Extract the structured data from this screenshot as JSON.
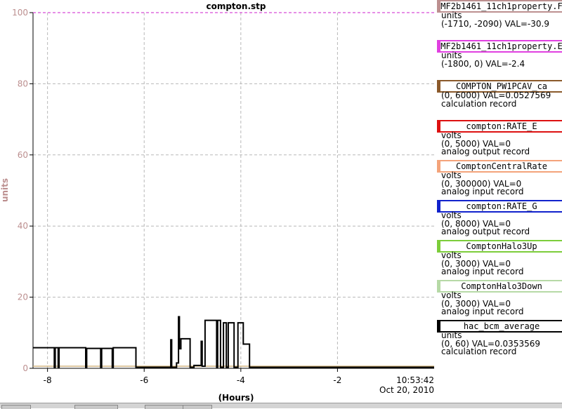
{
  "chart_data": {
    "type": "line",
    "title": "compton.stp",
    "xlabel": "(Hours)",
    "ylabel": "units",
    "xlim": [
      -8.3,
      0
    ],
    "ylim": [
      0,
      100
    ],
    "x_ticks": [
      -8,
      -6,
      -4,
      -2
    ],
    "y_ticks": [
      0,
      20,
      40,
      60,
      80,
      100
    ],
    "grid": true,
    "end_time": "10:53:42",
    "end_date": "Oct 20, 2010",
    "series": [
      {
        "color": "#000000",
        "points": [
          [
            -8.3,
            5.8
          ],
          [
            -7.86,
            5.8
          ],
          [
            -7.86,
            0.3
          ],
          [
            -7.84,
            0.3
          ],
          [
            -7.84,
            5.8
          ],
          [
            -7.78,
            5.8
          ],
          [
            -7.78,
            0.3
          ],
          [
            -7.76,
            0.3
          ],
          [
            -7.76,
            5.8
          ],
          [
            -7.21,
            5.8
          ],
          [
            -7.21,
            0.3
          ],
          [
            -7.19,
            0.3
          ],
          [
            -7.19,
            5.6
          ],
          [
            -6.9,
            5.6
          ],
          [
            -6.9,
            0.3
          ],
          [
            -6.88,
            0.3
          ],
          [
            -6.88,
            5.6
          ],
          [
            -6.66,
            5.6
          ],
          [
            -6.66,
            0.3
          ],
          [
            -6.64,
            0.3
          ],
          [
            -6.64,
            5.8
          ],
          [
            -6.17,
            5.8
          ],
          [
            -6.17,
            0.3
          ],
          [
            -5.45,
            0.3
          ],
          [
            -5.45,
            8
          ],
          [
            -5.43,
            8
          ],
          [
            -5.43,
            0.3
          ],
          [
            -5.33,
            0.3
          ],
          [
            -5.33,
            1.5
          ],
          [
            -5.29,
            1.5
          ],
          [
            -5.29,
            14.5
          ],
          [
            -5.27,
            14.5
          ],
          [
            -5.27,
            5.5
          ],
          [
            -5.24,
            5.5
          ],
          [
            -5.24,
            8.3
          ],
          [
            -5.05,
            8.3
          ],
          [
            -5.05,
            0.3
          ],
          [
            -4.97,
            0.3
          ],
          [
            -4.97,
            0.8
          ],
          [
            -4.82,
            0.8
          ],
          [
            -4.82,
            7.6
          ],
          [
            -4.8,
            7.6
          ],
          [
            -4.8,
            0.6
          ],
          [
            -4.74,
            0.6
          ],
          [
            -4.74,
            13.5
          ],
          [
            -4.5,
            13.5
          ],
          [
            -4.5,
            0.3
          ],
          [
            -4.48,
            0.3
          ],
          [
            -4.48,
            13.5
          ],
          [
            -4.42,
            13.5
          ],
          [
            -4.42,
            0.3
          ],
          [
            -4.36,
            0.3
          ],
          [
            -4.36,
            12.8
          ],
          [
            -4.3,
            12.8
          ],
          [
            -4.3,
            0.3
          ],
          [
            -4.26,
            0.3
          ],
          [
            -4.26,
            12.8
          ],
          [
            -4.14,
            12.8
          ],
          [
            -4.14,
            0.3
          ],
          [
            -4.06,
            0.3
          ],
          [
            -4.06,
            12.8
          ],
          [
            -3.95,
            12.8
          ],
          [
            -3.95,
            6.8
          ],
          [
            -3.82,
            6.8
          ],
          [
            -3.82,
            0.3
          ],
          [
            0,
            0.3
          ]
        ]
      },
      {
        "color": "#c9a86a",
        "points": [
          [
            -8.3,
            0.6
          ],
          [
            0,
            0.6
          ]
        ]
      },
      {
        "color": "#d84cd8",
        "points": [
          [
            -8.3,
            100
          ],
          [
            0,
            100
          ]
        ]
      }
    ]
  },
  "legend": [
    {
      "name": "MF2b1461_11ch1property.F",
      "color": "#bc8f8f",
      "lines": [
        "units",
        "(-1710, -2090) VAL=-30.9"
      ]
    },
    {
      "name": "MF2b1461_11ch1property.E",
      "color": "#e040e0",
      "lines": [
        "units",
        "(-1800, 0) VAL=-2.4"
      ]
    },
    {
      "name": "COMPTON_PW1PCAV_ca",
      "color": "#8b5a2b",
      "lines": [
        "(0, 6000) VAL=0.0527569",
        "calculation record"
      ]
    },
    {
      "name": "compton:RATE_E",
      "color": "#dd1111",
      "lines": [
        "volts",
        "(0, 5000) VAL=0",
        "analog output record"
      ]
    },
    {
      "name": "ComptonCentralRate",
      "color": "#f4a37a",
      "lines": [
        "volts",
        "(0, 300000) VAL=0",
        "analog input record"
      ]
    },
    {
      "name": "compton:RATE_G",
      "color": "#1122cc",
      "lines": [
        "volts",
        "(0, 8000) VAL=0",
        "analog output record"
      ]
    },
    {
      "name": "ComptonHalo3Up",
      "color": "#7ccd3a",
      "lines": [
        "volts",
        "(0, 3000) VAL=0",
        "analog input record"
      ]
    },
    {
      "name": "ComptonHalo3Down",
      "color": "#b6d9a6",
      "lines": [
        "volts",
        "(0, 3000) VAL=0",
        "analog input record"
      ]
    },
    {
      "name": "hac_bcm_average",
      "color": "#000000",
      "lines": [
        "units",
        "(0, 60) VAL=0.0353569",
        "calculation record"
      ]
    }
  ],
  "colors": {
    "grid": "#b8b8b8",
    "ylabel": "#bc8f8f",
    "ytick": "#bc8f8f"
  }
}
